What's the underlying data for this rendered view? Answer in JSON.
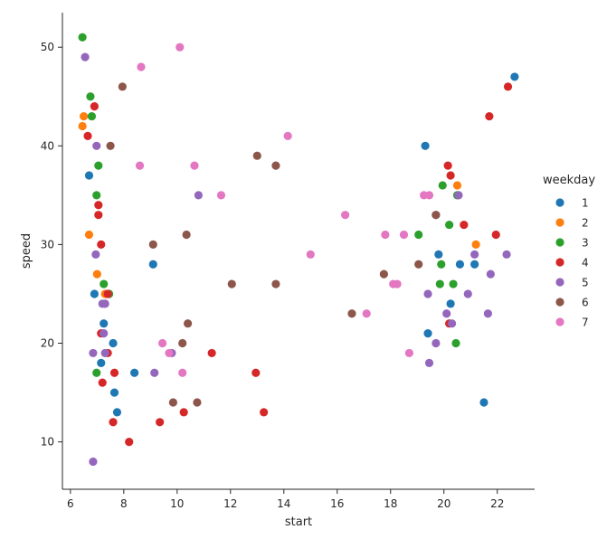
{
  "chart_data": {
    "type": "scatter",
    "xlabel": "start",
    "ylabel": "speed",
    "xlim": [
      5.7,
      23.4
    ],
    "ylim": [
      5.2,
      53.5
    ],
    "xticks": [
      6,
      8,
      10,
      12,
      14,
      16,
      18,
      20,
      22
    ],
    "yticks": [
      10,
      20,
      30,
      40,
      50
    ],
    "grid": false,
    "legend": {
      "title": "weekday",
      "placement": "right"
    },
    "series": [
      {
        "name": "1",
        "color": "#1f77b4",
        "points": [
          [
            6.7,
            37
          ],
          [
            6.9,
            25
          ],
          [
            7.15,
            18
          ],
          [
            7.25,
            22
          ],
          [
            7.6,
            20
          ],
          [
            7.65,
            15
          ],
          [
            7.75,
            13
          ],
          [
            8.4,
            17
          ],
          [
            9.1,
            28
          ],
          [
            19.3,
            40
          ],
          [
            19.4,
            21
          ],
          [
            19.8,
            29
          ],
          [
            20.25,
            24
          ],
          [
            20.6,
            28
          ],
          [
            21.15,
            28
          ],
          [
            21.5,
            14
          ],
          [
            22.65,
            47
          ]
        ]
      },
      {
        "name": "2",
        "color": "#ff7f0e",
        "points": [
          [
            6.45,
            42
          ],
          [
            6.5,
            43
          ],
          [
            6.7,
            31
          ],
          [
            7.0,
            27
          ],
          [
            7.3,
            25
          ],
          [
            20.5,
            36
          ],
          [
            21.2,
            30
          ]
        ]
      },
      {
        "name": "3",
        "color": "#2ca02c",
        "points": [
          [
            6.45,
            51
          ],
          [
            6.75,
            45
          ],
          [
            6.8,
            43
          ],
          [
            7.05,
            38
          ],
          [
            6.98,
            35
          ],
          [
            6.98,
            17
          ],
          [
            7.25,
            26
          ],
          [
            7.45,
            25
          ],
          [
            19.05,
            31
          ],
          [
            19.85,
            26
          ],
          [
            19.9,
            28
          ],
          [
            19.95,
            36
          ],
          [
            20.2,
            32
          ],
          [
            20.35,
            26
          ],
          [
            20.45,
            20
          ],
          [
            20.5,
            35
          ]
        ]
      },
      {
        "name": "4",
        "color": "#d62728",
        "points": [
          [
            6.65,
            41
          ],
          [
            6.9,
            44
          ],
          [
            7.05,
            34
          ],
          [
            7.05,
            33
          ],
          [
            7.15,
            30
          ],
          [
            7.15,
            21
          ],
          [
            7.2,
            16
          ],
          [
            7.4,
            25
          ],
          [
            7.4,
            19
          ],
          [
            7.6,
            12
          ],
          [
            7.65,
            17
          ],
          [
            8.2,
            10
          ],
          [
            9.35,
            12
          ],
          [
            10.25,
            13
          ],
          [
            11.3,
            19
          ],
          [
            12.95,
            17
          ],
          [
            13.25,
            13
          ],
          [
            20.15,
            38
          ],
          [
            20.25,
            37
          ],
          [
            20.2,
            22
          ],
          [
            20.75,
            32
          ],
          [
            21.7,
            43
          ],
          [
            21.95,
            31
          ],
          [
            22.4,
            46
          ]
        ]
      },
      {
        "name": "5",
        "color": "#9467bd",
        "points": [
          [
            6.55,
            49
          ],
          [
            6.98,
            40
          ],
          [
            6.95,
            29
          ],
          [
            6.85,
            19
          ],
          [
            6.85,
            8
          ],
          [
            7.2,
            24
          ],
          [
            7.25,
            21
          ],
          [
            7.3,
            19
          ],
          [
            7.3,
            24
          ],
          [
            9.15,
            17
          ],
          [
            9.8,
            19
          ],
          [
            10.8,
            35
          ],
          [
            19.4,
            25
          ],
          [
            19.45,
            18
          ],
          [
            19.7,
            33
          ],
          [
            19.7,
            20
          ],
          [
            20.1,
            23
          ],
          [
            20.3,
            22
          ],
          [
            20.55,
            35
          ],
          [
            20.9,
            25
          ],
          [
            21.15,
            29
          ],
          [
            21.65,
            23
          ],
          [
            21.75,
            27
          ],
          [
            22.35,
            29
          ]
        ]
      },
      {
        "name": "6",
        "color": "#8c564b",
        "points": [
          [
            7.95,
            46
          ],
          [
            7.5,
            40
          ],
          [
            9.1,
            30
          ],
          [
            9.85,
            14
          ],
          [
            10.2,
            20
          ],
          [
            10.35,
            31
          ],
          [
            10.4,
            22
          ],
          [
            10.75,
            14
          ],
          [
            12.05,
            26
          ],
          [
            13.0,
            39
          ],
          [
            13.7,
            38
          ],
          [
            13.7,
            26
          ],
          [
            16.55,
            23
          ],
          [
            17.75,
            27
          ],
          [
            19.05,
            28
          ],
          [
            19.7,
            33
          ]
        ]
      },
      {
        "name": "7",
        "color": "#e377c2",
        "points": [
          [
            8.6,
            38
          ],
          [
            8.65,
            48
          ],
          [
            9.45,
            20
          ],
          [
            9.7,
            19
          ],
          [
            10.1,
            50
          ],
          [
            10.2,
            17
          ],
          [
            10.65,
            38
          ],
          [
            11.65,
            35
          ],
          [
            14.15,
            41
          ],
          [
            15.0,
            29
          ],
          [
            16.3,
            33
          ],
          [
            17.1,
            23
          ],
          [
            17.8,
            31
          ],
          [
            18.1,
            26
          ],
          [
            18.25,
            26
          ],
          [
            18.5,
            31
          ],
          [
            18.7,
            19
          ],
          [
            19.25,
            35
          ],
          [
            19.45,
            35
          ]
        ]
      }
    ]
  }
}
